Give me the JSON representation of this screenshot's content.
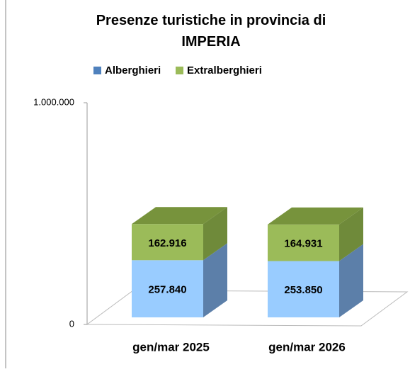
{
  "chart_data": {
    "type": "bar",
    "stacked": true,
    "title": "Presenze turistiche in provincia di IMPERIA",
    "categories": [
      "gen/mar 2025",
      "gen/mar 2026"
    ],
    "series": [
      {
        "name": "Alberghieri",
        "color": "#4f81bd",
        "values": [
          257840,
          253850
        ],
        "value_labels": [
          "257.840",
          "253.850"
        ]
      },
      {
        "name": "Extralberghieri",
        "color": "#9bbb59",
        "values": [
          162916,
          164931
        ],
        "value_labels": [
          "162.916",
          "164.931"
        ]
      }
    ],
    "ylim": [
      0,
      1000000
    ],
    "yticks": [
      0,
      {
        "value": 1000000,
        "label": "1.000.000"
      }
    ],
    "legend": "top"
  }
}
